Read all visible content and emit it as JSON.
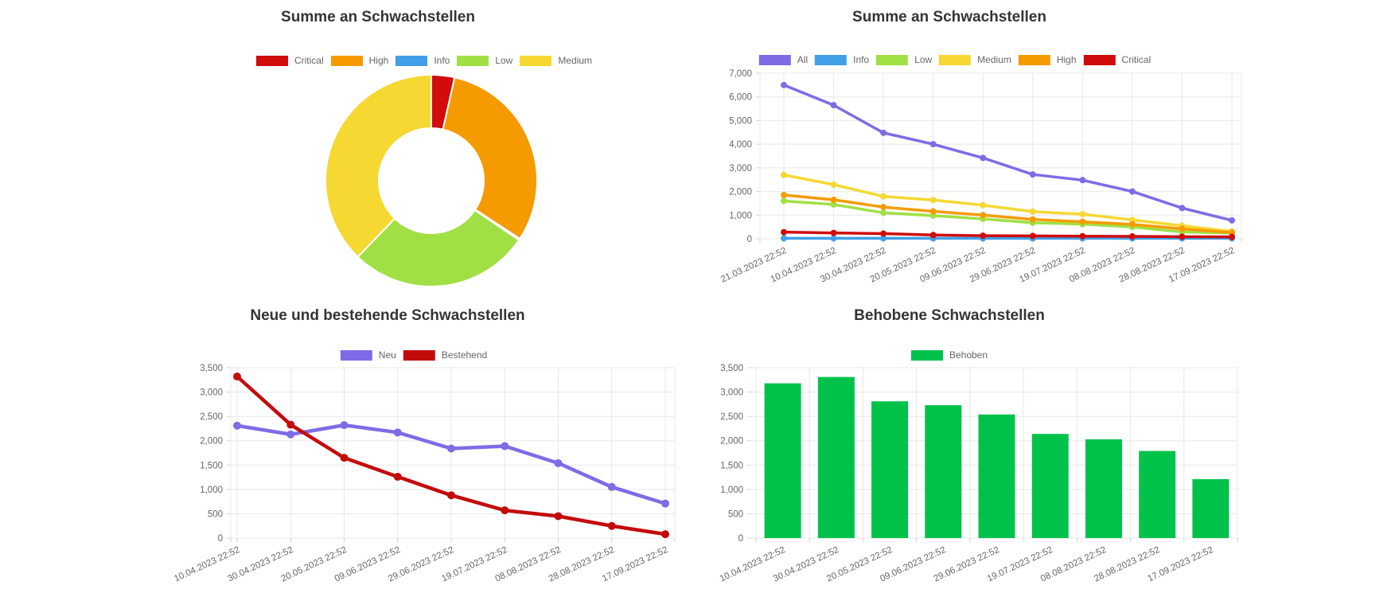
{
  "page": {
    "background": "#ffffff"
  },
  "chart_data": [
    {
      "type": "pie",
      "title": "Summe an Schwachstellen",
      "legend_position": "top",
      "labels": [
        "Critical",
        "High",
        "Info",
        "Low",
        "Medium"
      ],
      "values": [
        30,
        260,
        2,
        235,
        320
      ],
      "colors": [
        "#d00c0c",
        "#f59b00",
        "#419fe8",
        "#a0e045",
        "#f5d832"
      ],
      "cutout_percent": 50,
      "border_color": "#ffffff"
    },
    {
      "type": "line",
      "title": "Summe an Schwachstellen",
      "legend_position": "top",
      "categories": [
        "21.03.2023 22:52",
        "10.04.2023 22:52",
        "30.04.2023 22:52",
        "20.05.2023 22:52",
        "09.06.2023 22:52",
        "29.06.2023 22:52",
        "19.07.2023 22:52",
        "08.08.2023 22:52",
        "28.08.2023 22:52",
        "17.09.2023 22:52"
      ],
      "series": [
        {
          "name": "All",
          "color": "#7d6ce6",
          "values": [
            6500,
            5650,
            4480,
            4000,
            3420,
            2720,
            2480,
            2000,
            1300,
            780
          ]
        },
        {
          "name": "Info",
          "color": "#419fe8",
          "values": [
            20,
            20,
            20,
            20,
            20,
            20,
            20,
            20,
            20,
            20
          ]
        },
        {
          "name": "Low",
          "color": "#a0e045",
          "values": [
            1600,
            1450,
            1100,
            980,
            840,
            680,
            620,
            500,
            290,
            240
          ]
        },
        {
          "name": "Medium",
          "color": "#f5d832",
          "values": [
            2700,
            2290,
            1790,
            1640,
            1420,
            1150,
            1040,
            800,
            550,
            310
          ]
        },
        {
          "name": "High",
          "color": "#f59b00",
          "values": [
            1850,
            1650,
            1340,
            1160,
            1000,
            820,
            720,
            610,
            420,
            260
          ]
        },
        {
          "name": "Critical",
          "color": "#d00c0c",
          "values": [
            280,
            250,
            220,
            160,
            130,
            120,
            110,
            100,
            90,
            80
          ]
        }
      ],
      "ylim": [
        0,
        7000
      ],
      "grid": true,
      "yticks": [
        {
          "value": 0,
          "label": "0"
        },
        {
          "value": 1000,
          "label": "1,000"
        },
        {
          "value": 2000,
          "label": "2,000"
        },
        {
          "value": 3000,
          "label": "3,000"
        },
        {
          "value": 4000,
          "label": "4,000"
        },
        {
          "value": 5000,
          "label": "5,000"
        },
        {
          "value": 6000,
          "label": "6,000"
        },
        {
          "value": 7000,
          "label": "7,000"
        }
      ]
    },
    {
      "type": "line",
      "title": "Neue und bestehende Schwachstellen",
      "legend_position": "top",
      "categories": [
        "10.04.2023 22:52",
        "30.04.2023 22:52",
        "20.05.2023 22:52",
        "09.06.2023 22:52",
        "29.06.2023 22:52",
        "19.07.2023 22:52",
        "08.08.2023 22:52",
        "28.08.2023 22:52",
        "17.09.2023 22:52"
      ],
      "series": [
        {
          "name": "Neu",
          "color": "#7d6ce6",
          "values": [
            2310,
            2130,
            2320,
            2170,
            1840,
            1890,
            1540,
            1050,
            710
          ]
        },
        {
          "name": "Bestehend",
          "color": "#c40b0b",
          "values": [
            3320,
            2330,
            1650,
            1260,
            880,
            570,
            450,
            250,
            80
          ]
        }
      ],
      "ylim": [
        0,
        3500
      ],
      "grid": true,
      "yticks": [
        {
          "value": 0,
          "label": "0"
        },
        {
          "value": 500,
          "label": "500"
        },
        {
          "value": 1000,
          "label": "1,000"
        },
        {
          "value": 1500,
          "label": "1,500"
        },
        {
          "value": 2000,
          "label": "2,000"
        },
        {
          "value": 2500,
          "label": "2,500"
        },
        {
          "value": 3000,
          "label": "3,000"
        },
        {
          "value": 3500,
          "label": "3,500"
        }
      ]
    },
    {
      "type": "bar",
      "title": "Behobene Schwachstellen",
      "legend_position": "top",
      "categories": [
        "10.04.2023 22:52",
        "30.04.2023 22:52",
        "20.05.2023 22:52",
        "09.06.2023 22:52",
        "29.06.2023 22:52",
        "19.07.2023 22:52",
        "08.08.2023 22:52",
        "28.08.2023 22:52",
        "17.09.2023 22:52"
      ],
      "series": [
        {
          "name": "Behoben",
          "color": "#00c24b",
          "values": [
            3180,
            3310,
            2810,
            2730,
            2540,
            2140,
            2030,
            1790,
            1210
          ]
        }
      ],
      "ylim": [
        0,
        3500
      ],
      "grid": true,
      "yticks": [
        {
          "value": 0,
          "label": "0"
        },
        {
          "value": 500,
          "label": "500"
        },
        {
          "value": 1000,
          "label": "1,000"
        },
        {
          "value": 1500,
          "label": "1,500"
        },
        {
          "value": 2000,
          "label": "2,000"
        },
        {
          "value": 2500,
          "label": "2,500"
        },
        {
          "value": 3000,
          "label": "3,000"
        },
        {
          "value": 3500,
          "label": "3,500"
        }
      ]
    }
  ]
}
